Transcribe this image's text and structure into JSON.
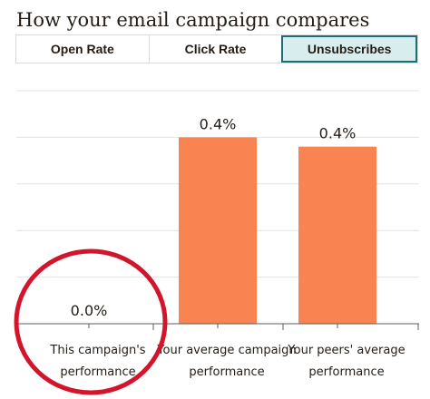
{
  "header": {
    "title": "How your email campaign compares"
  },
  "tabs": [
    {
      "label": "Open Rate",
      "active": false
    },
    {
      "label": "Click Rate",
      "active": false
    },
    {
      "label": "Unsubscribes",
      "active": true
    }
  ],
  "colors": {
    "bar": "#f98452",
    "grid": "#e3e3e3",
    "axis": "#5c5c5c",
    "active_tab_bg": "#d8edee",
    "active_tab_border": "#1b6f73",
    "circle": "#d3152b"
  },
  "chart_data": {
    "type": "bar",
    "categories": [
      [
        "This campaign's",
        "performance"
      ],
      [
        "Your average campaign",
        "performance"
      ],
      [
        "Your peers' average",
        "performance"
      ]
    ],
    "values": [
      0.0,
      0.4,
      0.38
    ],
    "value_labels": [
      "0.0%",
      "0.4%",
      "0.4%"
    ],
    "ylim": [
      0,
      0.5
    ],
    "grid": true,
    "annotation": "red circle highlighting the first category"
  }
}
